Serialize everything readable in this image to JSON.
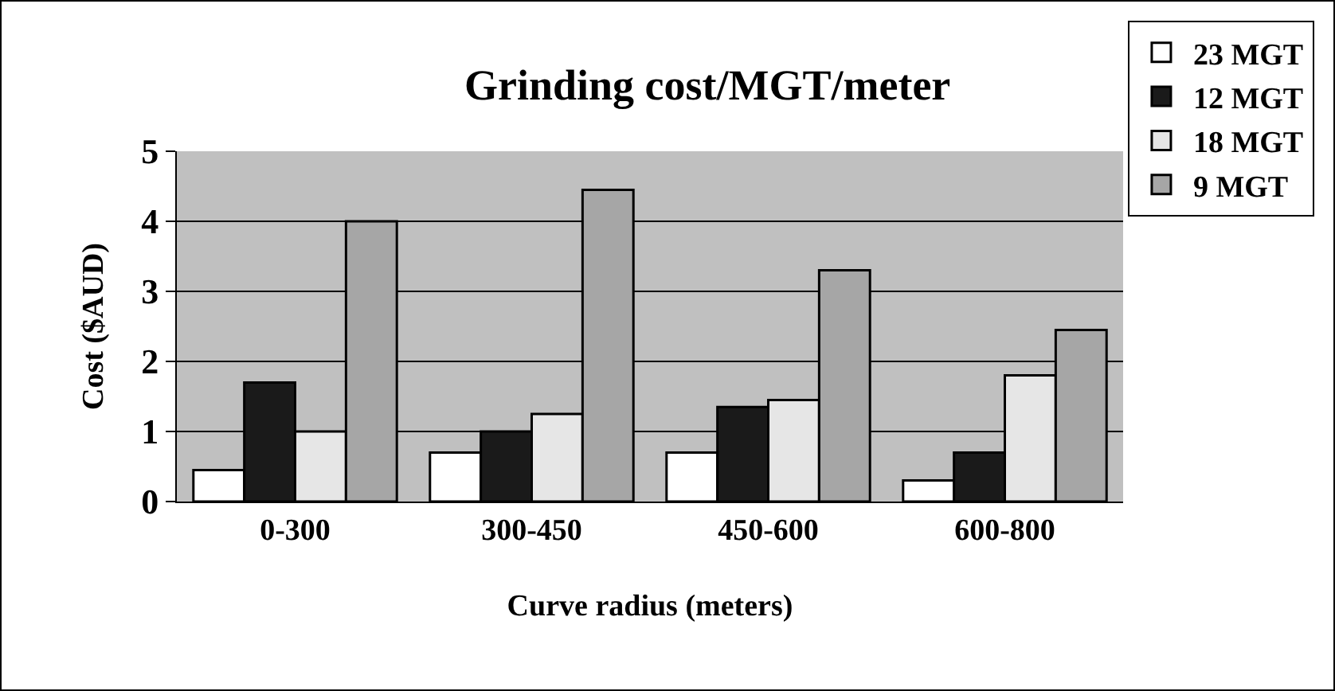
{
  "chart_data": {
    "type": "bar",
    "title": "Grinding cost/MGT/meter",
    "xlabel": "Curve radius (meters)",
    "ylabel": "Cost ($AUD)",
    "categories": [
      "0-300",
      "300-450",
      "450-600",
      "600-800"
    ],
    "series": [
      {
        "name": "23 MGT",
        "color": "#ffffff",
        "values": [
          0.45,
          0.7,
          0.7,
          0.3
        ]
      },
      {
        "name": "12 MGT",
        "color": "#1a1a1a",
        "values": [
          1.7,
          1.0,
          1.35,
          0.7
        ]
      },
      {
        "name": "18 MGT",
        "color": "#e6e6e6",
        "values": [
          1.0,
          1.25,
          1.45,
          1.8
        ]
      },
      {
        "name": "9 MGT",
        "color": "#a6a6a6",
        "values": [
          4.0,
          4.45,
          3.3,
          2.45
        ]
      }
    ],
    "ylim": [
      0,
      5
    ],
    "yticks": [
      0,
      1,
      2,
      3,
      4,
      5
    ],
    "grid": "y",
    "legend": "top right"
  }
}
